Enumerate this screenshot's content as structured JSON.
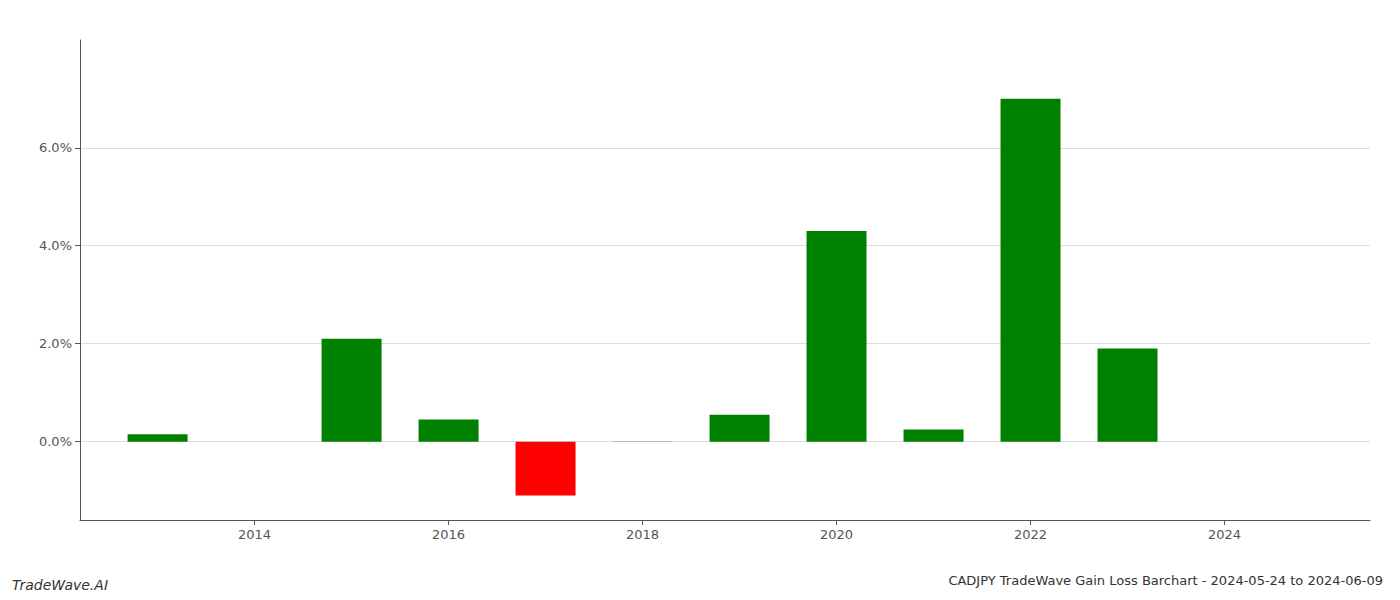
{
  "chart_data": {
    "type": "bar",
    "title": "CADJPY TradeWave Gain Loss Barchart - 2024-05-24 to 2024-06-09",
    "annotations": [
      "TradeWave.AI"
    ],
    "x": [
      2013,
      2015,
      2016,
      2017,
      2018,
      2019,
      2020,
      2021,
      2022,
      2023
    ],
    "values": [
      0.0015,
      0.021,
      0.0045,
      -0.011,
      5e-05,
      0.0055,
      0.043,
      0.0025,
      0.07,
      0.019
    ],
    "colors": [
      "#008000",
      "#008000",
      "#008000",
      "#ff0000",
      "#008000",
      "#008000",
      "#008000",
      "#008000",
      "#008000",
      "#008000"
    ],
    "xlim": [
      2012.2,
      2025.5
    ],
    "xticks": [
      2014,
      2016,
      2018,
      2020,
      2022,
      2024
    ],
    "ylim": [
      -0.016,
      0.082
    ],
    "yticks": [
      {
        "value": 0.0,
        "label": "0.0%"
      },
      {
        "value": 0.02,
        "label": "2.0%"
      },
      {
        "value": 0.04,
        "label": "4.0%"
      },
      {
        "value": 0.06,
        "label": "6.0%"
      }
    ],
    "grid": true
  }
}
